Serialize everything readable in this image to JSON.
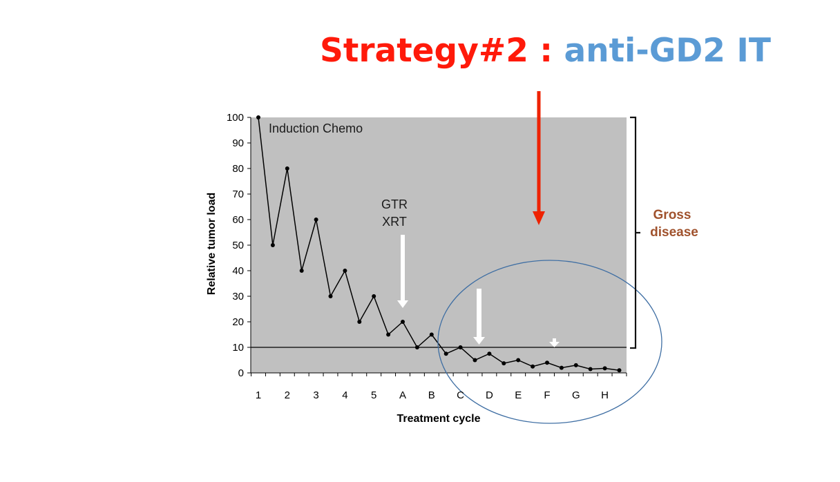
{
  "slide": {
    "title_part1": "Strategy#2 : ",
    "title_part2": "anti-GD2 IT",
    "title_color1": "#ff1a0a",
    "title_color2": "#5b9bd5"
  },
  "colors": {
    "plot_bg": "#c0c0c0",
    "line": "#000000",
    "red_arrow": "#ee2200",
    "white_arrow": "#ffffff",
    "ellipse": "#3e6ea3",
    "gross_disease": "#a0522d"
  },
  "annotations": {
    "induction": "Induction Chemo",
    "gtr": "GTR",
    "xrt": "XRT",
    "gross_line1": "Gross",
    "gross_line2": "disease"
  },
  "chart_data": {
    "type": "line",
    "xlabel": "Treatment cycle",
    "ylabel": "Relative tumor load",
    "ylim": [
      0,
      100
    ],
    "yticks": [
      0,
      10,
      20,
      30,
      40,
      50,
      60,
      70,
      80,
      90,
      100
    ],
    "categories": [
      "1",
      "2",
      "3",
      "4",
      "5",
      "A",
      "B",
      "C",
      "D",
      "E",
      "F",
      "G",
      "H"
    ],
    "x": [
      1,
      1.5,
      2,
      2.5,
      3,
      3.5,
      4,
      4.5,
      5,
      5.5,
      6,
      6.5,
      7,
      7.5,
      8,
      8.5,
      9,
      9.5,
      10,
      10.5,
      11,
      11.5,
      12,
      12.5,
      13,
      13.5
    ],
    "values": [
      100,
      50,
      80,
      40,
      60,
      30,
      40,
      20,
      30,
      15,
      20,
      10,
      15,
      7.5,
      10,
      5,
      7.5,
      3.75,
      5,
      2.5,
      4,
      2,
      3,
      1.5,
      1.8,
      1
    ],
    "reference_line": 10,
    "grid": false,
    "legend": "none"
  }
}
